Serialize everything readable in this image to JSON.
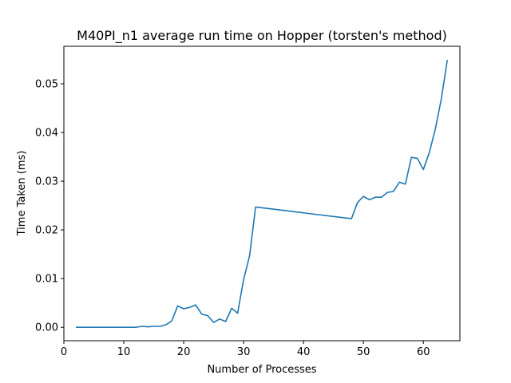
{
  "chart_data": {
    "type": "line",
    "title": "M40PI_n1 average run time on Hopper (torsten's method)",
    "xlabel": "Number of Processes",
    "ylabel": "Time Taken (ms)",
    "xlim": [
      0,
      66.1
    ],
    "ylim": [
      -0.00275,
      0.0577
    ],
    "xticks": [
      0,
      10,
      20,
      30,
      40,
      50,
      60
    ],
    "yticks": [
      0.0,
      0.01,
      0.02,
      0.03,
      0.04,
      0.05
    ],
    "ytick_labels": [
      "0.00",
      "0.01",
      "0.02",
      "0.03",
      "0.04",
      "0.05"
    ],
    "grid": false,
    "line_color": "#1f77b4",
    "series": [
      {
        "x": [
          2,
          3,
          4,
          5,
          6,
          7,
          8,
          9,
          10,
          11,
          12,
          13,
          14,
          15,
          16,
          17,
          18,
          19,
          20,
          21,
          22,
          23,
          24,
          25,
          26,
          27,
          28,
          29,
          30,
          31,
          32,
          48,
          49,
          50,
          51,
          52,
          53,
          54,
          55,
          56,
          57,
          58,
          59,
          60,
          61,
          62,
          63,
          64
        ],
        "y": [
          0.0,
          0.0,
          0.0,
          0.0,
          0.0,
          0.0,
          0.0,
          0.0,
          0.0,
          0.0,
          0.0,
          0.0002,
          0.0001,
          0.0002,
          0.0002,
          0.0005,
          0.0013,
          0.0044,
          0.0038,
          0.0041,
          0.0046,
          0.0027,
          0.0024,
          0.001,
          0.0017,
          0.0012,
          0.0039,
          0.0029,
          0.0098,
          0.0147,
          0.0247,
          0.0223,
          0.0256,
          0.0269,
          0.0262,
          0.0267,
          0.0267,
          0.0277,
          0.0279,
          0.0298,
          0.0294,
          0.0349,
          0.0347,
          0.0324,
          0.0359,
          0.0407,
          0.0469,
          0.0549
        ]
      }
    ]
  }
}
